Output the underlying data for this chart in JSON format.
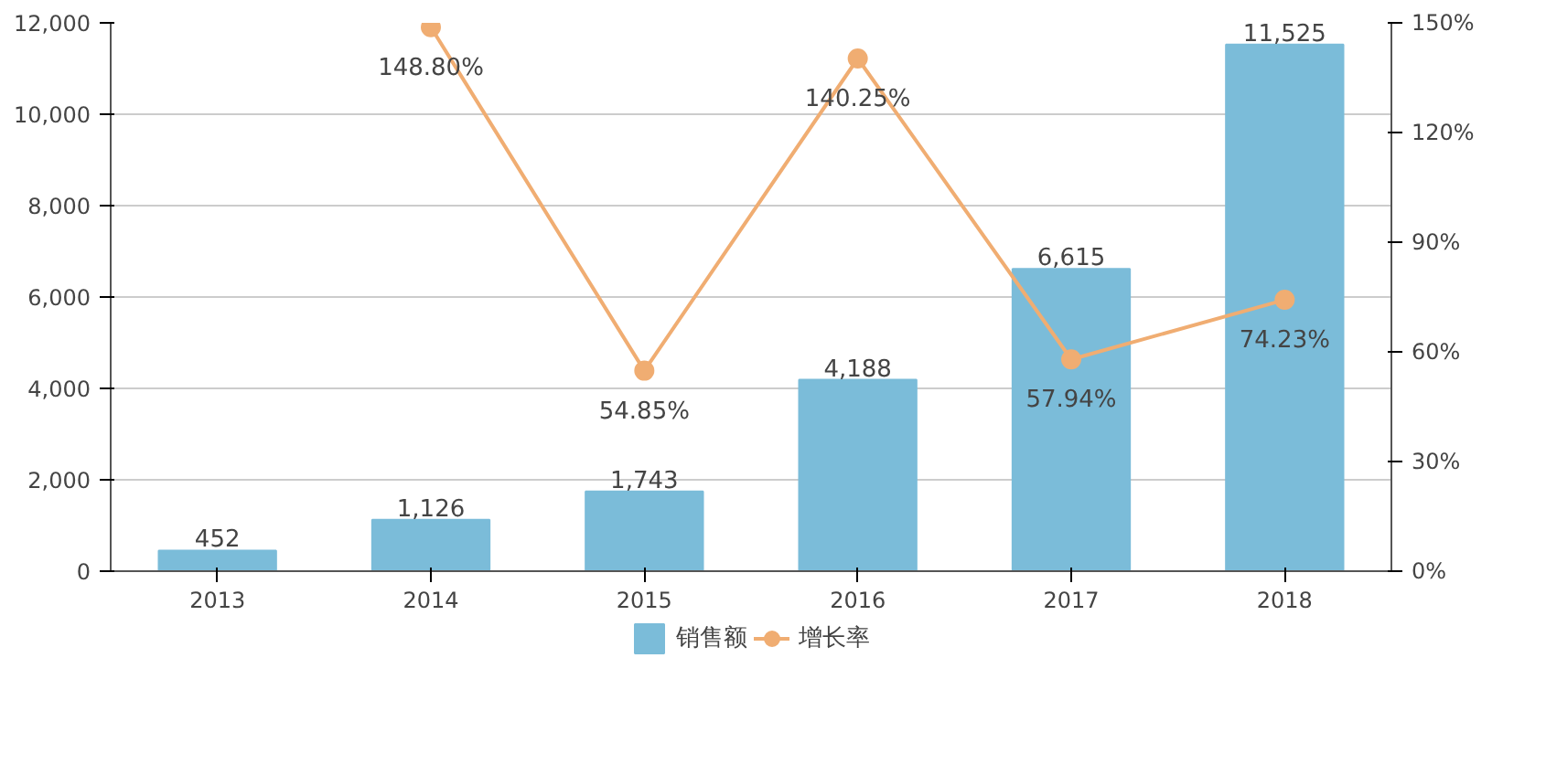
{
  "chart_data": {
    "type": "bar",
    "categories": [
      "2013",
      "2014",
      "2015",
      "2016",
      "2017",
      "2018"
    ],
    "series": [
      {
        "name": "销售额",
        "color": "#7bbcd9",
        "values": [
          452,
          1126,
          1743,
          4188,
          6615,
          11525
        ],
        "value_labels": [
          "452",
          "1,126",
          "1,743",
          "4,188",
          "6,615",
          "11,525"
        ]
      },
      {
        "name": "增长率",
        "type": "line",
        "axis": "y2",
        "color": "#f0ad72",
        "marker": "circle",
        "values": [
          null,
          148.8,
          54.85,
          140.25,
          57.94,
          74.23
        ],
        "value_labels": [
          null,
          "148.80%",
          "54.85%",
          "140.25%",
          "57.94%",
          "74.23%"
        ]
      }
    ],
    "ylim": [
      0,
      12000
    ],
    "yticks": [
      {
        "value": 0,
        "label": "0"
      },
      {
        "value": 2000,
        "label": "2,000"
      },
      {
        "value": 4000,
        "label": "4,000"
      },
      {
        "value": 6000,
        "label": "6,000"
      },
      {
        "value": 8000,
        "label": "8,000"
      },
      {
        "value": 10000,
        "label": "10,000"
      },
      {
        "value": 12000,
        "label": "12,000"
      }
    ],
    "y2lim": [
      0,
      150
    ],
    "y2ticks": [
      {
        "value": 0,
        "label": "0%"
      },
      {
        "value": 30,
        "label": "30%"
      },
      {
        "value": 60,
        "label": "60%"
      },
      {
        "value": 90,
        "label": "90%"
      },
      {
        "value": 120,
        "label": "120%"
      },
      {
        "value": 150,
        "label": "150%"
      }
    ],
    "grid": "y",
    "legend": "bottom"
  }
}
